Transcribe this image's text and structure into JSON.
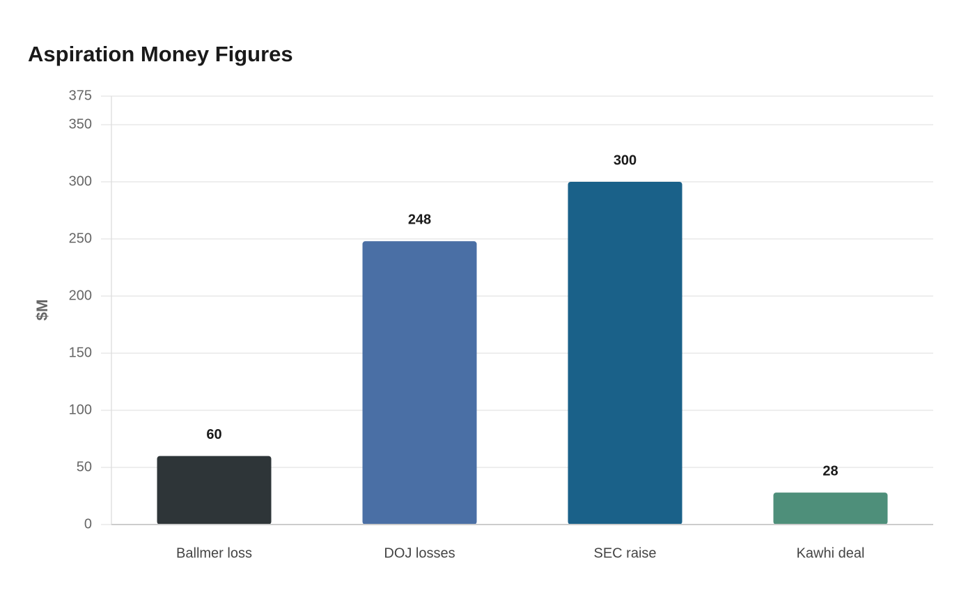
{
  "chart_data": {
    "type": "bar",
    "title": "Aspiration Money Figures",
    "y_label": "$M",
    "categories": [
      "Ballmer loss",
      "DOJ losses",
      "SEC raise",
      "Kawhi deal"
    ],
    "values": [
      60,
      248,
      300,
      28
    ],
    "colors": [
      "#2e3538",
      "#4a6fa5",
      "#1a6189",
      "#4e8f7a"
    ],
    "ylim": [
      0,
      375
    ],
    "yticks": [
      0,
      50,
      100,
      150,
      200,
      250,
      300,
      350,
      375
    ],
    "grid": true
  }
}
